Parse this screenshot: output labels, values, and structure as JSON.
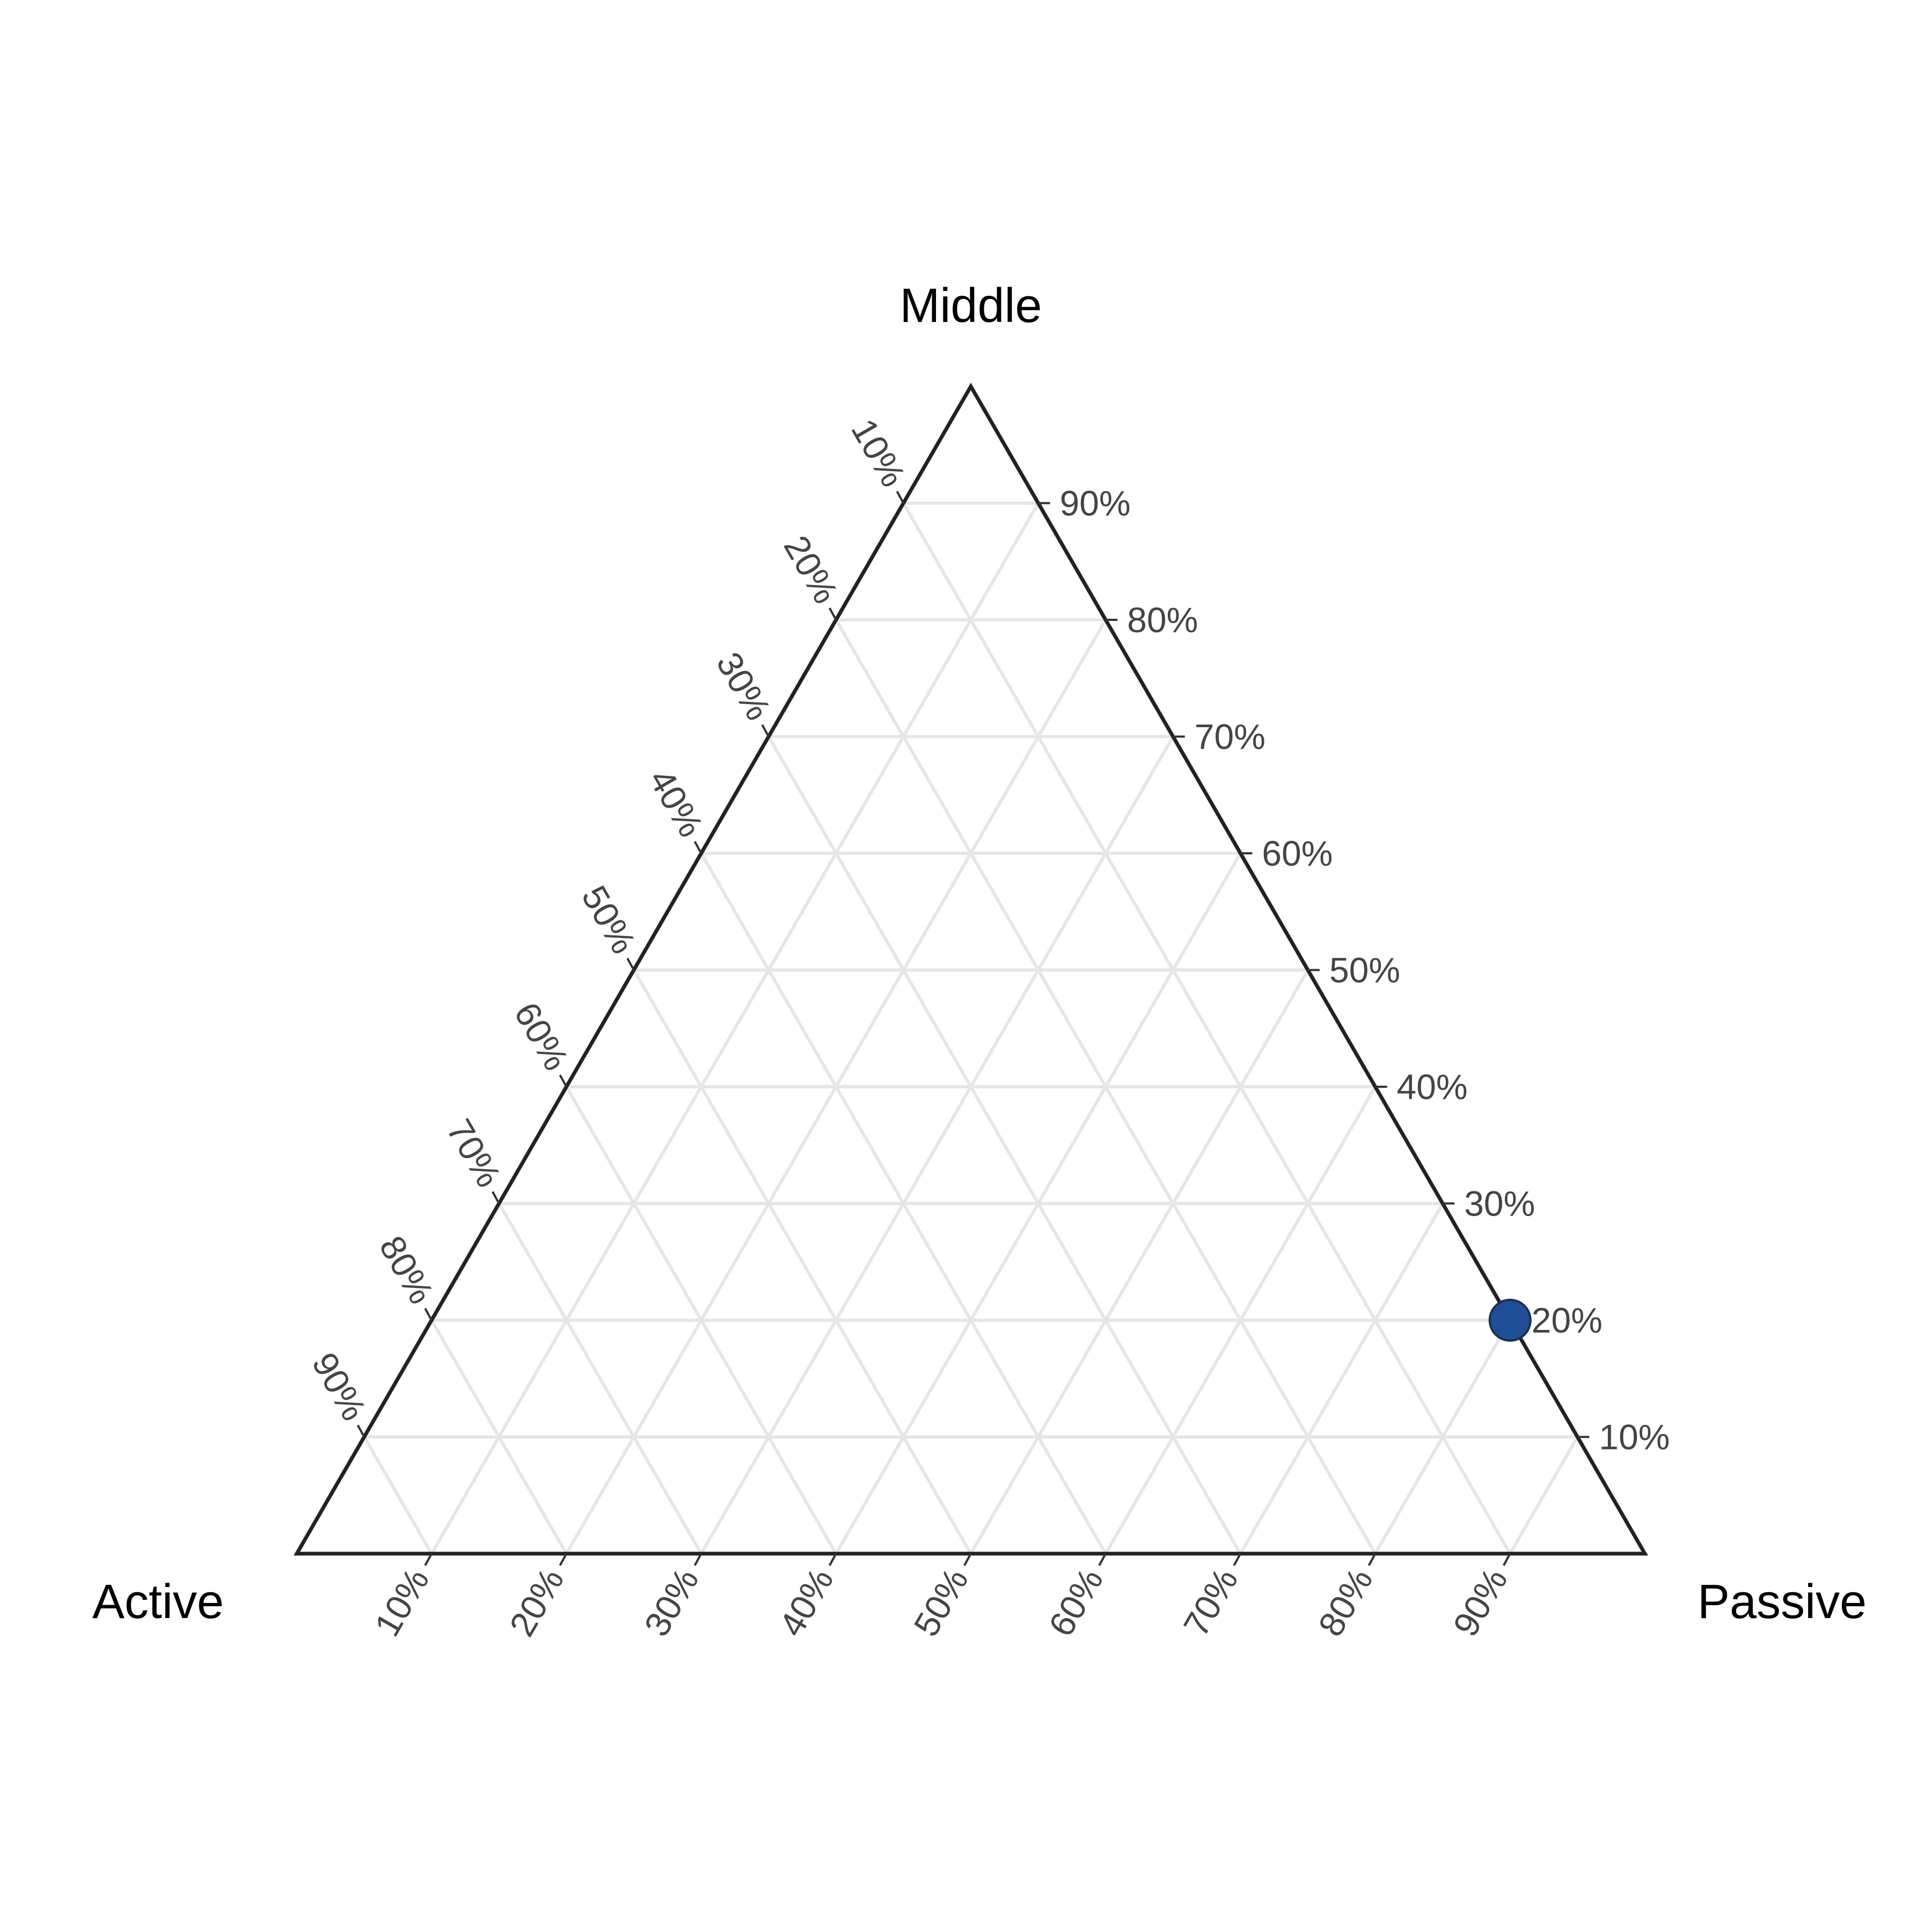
{
  "chart_data": {
    "type": "scatter",
    "subtype": "ternary",
    "axes": {
      "top": "Middle",
      "left": "Active",
      "right": "Passive"
    },
    "tick_labels": {
      "middle": [
        "10%",
        "20%",
        "30%",
        "40%",
        "50%",
        "60%",
        "70%",
        "80%",
        "90%"
      ],
      "passive": [
        "10%",
        "20%",
        "30%",
        "40%",
        "50%",
        "60%",
        "70%",
        "80%",
        "90%"
      ],
      "active": [
        "10%",
        "20%",
        "30%",
        "40%",
        "50%",
        "60%",
        "70%",
        "80%",
        "90%"
      ]
    },
    "grid": true,
    "series": [
      {
        "points": [
          {
            "active": 0.0,
            "middle": 0.2,
            "passive": 0.8
          }
        ]
      }
    ],
    "colors": {
      "point": "#1f4e96",
      "point_stroke": "#1c2e4a"
    }
  }
}
